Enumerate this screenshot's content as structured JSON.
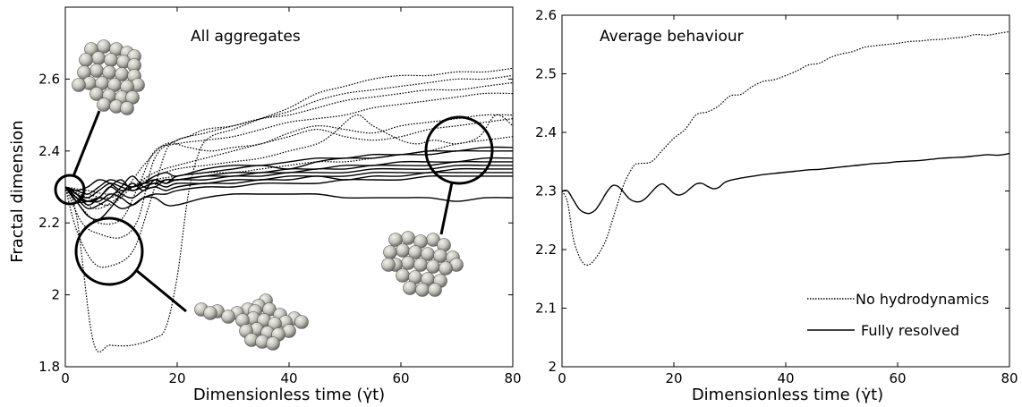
{
  "figure": {
    "background": "#ffffff",
    "ink": "#000000",
    "sphere_color": "#c8c8c0"
  },
  "chart_data": [
    {
      "type": "line",
      "title": "All aggregates",
      "xlabel": "Dimensionless time (γ̇t)",
      "ylabel": "Fractal dimension",
      "xlim": [
        0,
        80
      ],
      "ylim": [
        1.8,
        2.8
      ],
      "xticks": [
        0,
        20,
        40,
        60,
        80
      ],
      "yticks": [
        1.8,
        2,
        2.2,
        2.4,
        2.6
      ],
      "ytick_labels": [
        "1.8",
        "2",
        "2.2",
        "2.4",
        "2.6"
      ],
      "grid": false,
      "annotations": [
        "aggregate at t = 0",
        "aggregate restructured during early deformation",
        "aggregate at late time"
      ],
      "series": [
        {
          "style": "dotted",
          "x": [
            0,
            2,
            5,
            8,
            12,
            16,
            18,
            20,
            22,
            24,
            26,
            30,
            35,
            40,
            45,
            50,
            55,
            60,
            65,
            70,
            75,
            80
          ],
          "y": [
            2.3,
            2.22,
            1.87,
            1.86,
            1.86,
            1.88,
            1.91,
            2.05,
            2.28,
            2.4,
            2.44,
            2.46,
            2.49,
            2.52,
            2.56,
            2.58,
            2.6,
            2.61,
            2.61,
            2.62,
            2.62,
            2.63
          ]
        },
        {
          "style": "dotted",
          "x": [
            0,
            2,
            5,
            8,
            12,
            15,
            18,
            20,
            22,
            25,
            30,
            35,
            40,
            45,
            50,
            55,
            60,
            65,
            70,
            75,
            80
          ],
          "y": [
            2.3,
            2.18,
            2.09,
            2.08,
            2.12,
            2.25,
            2.4,
            2.43,
            2.44,
            2.46,
            2.47,
            2.49,
            2.51,
            2.54,
            2.56,
            2.57,
            2.58,
            2.59,
            2.6,
            2.6,
            2.61
          ]
        },
        {
          "style": "dotted",
          "x": [
            0,
            3,
            6,
            10,
            13,
            16,
            20,
            25,
            30,
            35,
            40,
            45,
            50,
            55,
            60,
            65,
            70,
            75,
            80
          ],
          "y": [
            2.3,
            2.2,
            2.17,
            2.16,
            2.21,
            2.38,
            2.43,
            2.45,
            2.47,
            2.49,
            2.5,
            2.52,
            2.54,
            2.55,
            2.56,
            2.57,
            2.57,
            2.58,
            2.59
          ]
        },
        {
          "style": "dotted",
          "x": [
            0,
            3,
            6,
            10,
            13,
            16,
            20,
            25,
            30,
            35,
            40,
            45,
            50,
            55,
            60,
            65,
            70,
            75,
            80
          ],
          "y": [
            2.3,
            2.24,
            2.2,
            2.21,
            2.3,
            2.4,
            2.42,
            2.43,
            2.44,
            2.46,
            2.48,
            2.49,
            2.5,
            2.52,
            2.53,
            2.54,
            2.55,
            2.56,
            2.56
          ]
        },
        {
          "style": "dotted",
          "x": [
            0,
            3,
            6,
            10,
            14,
            18,
            22,
            26,
            30,
            35,
            40,
            45,
            50,
            55,
            60,
            65,
            70,
            75,
            80
          ],
          "y": [
            2.3,
            2.26,
            2.24,
            2.28,
            2.36,
            2.42,
            2.41,
            2.4,
            2.41,
            2.42,
            2.45,
            2.47,
            2.46,
            2.45,
            2.47,
            2.48,
            2.49,
            2.5,
            2.5
          ]
        },
        {
          "style": "dotted",
          "x": [
            0,
            4,
            8,
            12,
            16,
            20,
            25,
            30,
            35,
            40,
            45,
            50,
            55,
            60,
            65,
            70,
            75,
            80
          ],
          "y": [
            2.3,
            2.27,
            2.25,
            2.3,
            2.34,
            2.36,
            2.38,
            2.4,
            2.42,
            2.44,
            2.46,
            2.44,
            2.43,
            2.44,
            2.46,
            2.47,
            2.48,
            2.49
          ]
        },
        {
          "style": "dotted",
          "x": [
            0,
            4,
            8,
            12,
            16,
            20,
            25,
            30,
            35,
            40,
            45,
            48,
            52,
            55,
            60,
            63,
            66,
            70,
            74,
            77,
            80
          ],
          "y": [
            2.3,
            2.28,
            2.27,
            2.3,
            2.33,
            2.35,
            2.36,
            2.37,
            2.38,
            2.4,
            2.42,
            2.45,
            2.5,
            2.47,
            2.43,
            2.42,
            2.43,
            2.42,
            2.44,
            2.5,
            2.47
          ]
        },
        {
          "style": "dotted",
          "x": [
            0,
            4,
            8,
            12,
            16,
            20,
            25,
            30,
            35,
            40,
            45,
            50,
            55,
            60,
            65,
            70,
            75,
            80
          ],
          "y": [
            2.3,
            2.29,
            2.28,
            2.3,
            2.32,
            2.33,
            2.34,
            2.34,
            2.35,
            2.36,
            2.37,
            2.37,
            2.38,
            2.39,
            2.4,
            2.42,
            2.43,
            2.44
          ]
        },
        {
          "style": "solid",
          "x": [
            0,
            2,
            4,
            6,
            8,
            10,
            12,
            14,
            16,
            18,
            20,
            25,
            30,
            35,
            40,
            45,
            50,
            55,
            60,
            65,
            70,
            75,
            80
          ],
          "y": [
            2.3,
            2.28,
            2.25,
            2.27,
            2.3,
            2.32,
            2.29,
            2.31,
            2.33,
            2.34,
            2.33,
            2.35,
            2.36,
            2.36,
            2.37,
            2.38,
            2.38,
            2.39,
            2.39,
            2.4,
            2.4,
            2.41,
            2.41
          ]
        },
        {
          "style": "solid",
          "x": [
            0,
            2,
            4,
            6,
            8,
            10,
            12,
            14,
            16,
            18,
            20,
            25,
            30,
            35,
            40,
            45,
            50,
            55,
            60,
            65,
            70,
            75,
            80
          ],
          "y": [
            2.3,
            2.26,
            2.22,
            2.21,
            2.24,
            2.28,
            2.31,
            2.29,
            2.32,
            2.31,
            2.33,
            2.34,
            2.35,
            2.36,
            2.35,
            2.37,
            2.38,
            2.38,
            2.39,
            2.39,
            2.4,
            2.4,
            2.4
          ]
        },
        {
          "style": "solid",
          "x": [
            0,
            2,
            4,
            6,
            8,
            10,
            12,
            14,
            16,
            18,
            20,
            25,
            30,
            35,
            40,
            45,
            50,
            55,
            60,
            65,
            70,
            75,
            80
          ],
          "y": [
            2.3,
            2.27,
            2.24,
            2.25,
            2.27,
            2.3,
            2.33,
            2.3,
            2.3,
            2.32,
            2.32,
            2.33,
            2.34,
            2.34,
            2.35,
            2.35,
            2.36,
            2.36,
            2.37,
            2.37,
            2.37,
            2.38,
            2.38
          ]
        },
        {
          "style": "solid",
          "x": [
            0,
            2,
            4,
            6,
            8,
            10,
            12,
            14,
            16,
            18,
            20,
            25,
            30,
            35,
            40,
            45,
            50,
            55,
            60,
            65,
            70,
            75,
            80
          ],
          "y": [
            2.3,
            2.29,
            2.3,
            2.32,
            2.31,
            2.29,
            2.3,
            2.31,
            2.31,
            2.32,
            2.32,
            2.33,
            2.33,
            2.34,
            2.34,
            2.35,
            2.35,
            2.36,
            2.36,
            2.36,
            2.37,
            2.37,
            2.37
          ]
        },
        {
          "style": "solid",
          "x": [
            0,
            2,
            4,
            6,
            8,
            10,
            12,
            14,
            16,
            18,
            20,
            25,
            30,
            35,
            40,
            45,
            50,
            55,
            60,
            65,
            70,
            75,
            80
          ],
          "y": [
            2.3,
            2.29,
            2.28,
            2.3,
            2.32,
            2.31,
            2.3,
            2.31,
            2.32,
            2.31,
            2.32,
            2.32,
            2.33,
            2.33,
            2.34,
            2.34,
            2.34,
            2.35,
            2.35,
            2.35,
            2.36,
            2.36,
            2.36
          ]
        },
        {
          "style": "solid",
          "x": [
            0,
            2,
            4,
            6,
            8,
            10,
            12,
            14,
            16,
            18,
            20,
            25,
            30,
            35,
            40,
            45,
            50,
            55,
            60,
            65,
            70,
            75,
            80
          ],
          "y": [
            2.3,
            2.28,
            2.27,
            2.29,
            2.31,
            2.3,
            2.29,
            2.3,
            2.31,
            2.3,
            2.31,
            2.31,
            2.32,
            2.32,
            2.33,
            2.33,
            2.33,
            2.34,
            2.34,
            2.34,
            2.35,
            2.35,
            2.35
          ]
        },
        {
          "style": "solid",
          "x": [
            0,
            2,
            4,
            6,
            8,
            10,
            12,
            14,
            16,
            18,
            20,
            25,
            30,
            35,
            40,
            45,
            50,
            55,
            60,
            65,
            70,
            75,
            80
          ],
          "y": [
            2.3,
            2.28,
            2.26,
            2.27,
            2.3,
            2.28,
            2.27,
            2.29,
            2.3,
            2.29,
            2.3,
            2.31,
            2.31,
            2.32,
            2.32,
            2.33,
            2.32,
            2.33,
            2.33,
            2.34,
            2.34,
            2.34,
            2.34
          ]
        },
        {
          "style": "solid",
          "x": [
            0,
            2,
            4,
            6,
            8,
            10,
            12,
            14,
            16,
            18,
            20,
            25,
            30,
            35,
            40,
            45,
            50,
            55,
            60,
            65,
            70,
            75,
            80
          ],
          "y": [
            2.3,
            2.27,
            2.26,
            2.26,
            2.28,
            2.27,
            2.25,
            2.27,
            2.28,
            2.28,
            2.29,
            2.3,
            2.3,
            2.31,
            2.31,
            2.31,
            2.32,
            2.32,
            2.32,
            2.33,
            2.33,
            2.33,
            2.33
          ]
        },
        {
          "style": "solid",
          "x": [
            0,
            2,
            4,
            6,
            8,
            10,
            12,
            14,
            16,
            18,
            20,
            25,
            30,
            35,
            40,
            45,
            50,
            55,
            60,
            65,
            70,
            75,
            80
          ],
          "y": [
            2.3,
            2.26,
            2.26,
            2.27,
            2.26,
            2.24,
            2.25,
            2.27,
            2.27,
            2.25,
            2.25,
            2.27,
            2.28,
            2.28,
            2.28,
            2.28,
            2.27,
            2.27,
            2.27,
            2.27,
            2.26,
            2.27,
            2.27
          ]
        }
      ]
    },
    {
      "type": "line",
      "title": "Average behaviour",
      "xlabel": "Dimensionless time (γ̇t)",
      "ylabel": "",
      "xlim": [
        0,
        80
      ],
      "ylim": [
        2.0,
        2.6
      ],
      "xticks": [
        0,
        20,
        40,
        60,
        80
      ],
      "yticks": [
        2.0,
        2.1,
        2.2,
        2.3,
        2.4,
        2.5,
        2.6
      ],
      "ytick_labels": [
        "2",
        "2.1",
        "2.2",
        "2.3",
        "2.4",
        "2.5",
        "2.6"
      ],
      "grid": false,
      "legend_position": "lower-right",
      "series": [
        {
          "name": "No hydrodynamics",
          "style": "dotted",
          "x": [
            0,
            1,
            2,
            3,
            4,
            5,
            6,
            7,
            8,
            9,
            10,
            11,
            12,
            13,
            14,
            16,
            18,
            20,
            22,
            24,
            26,
            28,
            30,
            32,
            34,
            36,
            38,
            40,
            42,
            44,
            46,
            48,
            50,
            52,
            54,
            56,
            58,
            60,
            62,
            64,
            66,
            68,
            70,
            72,
            74,
            76,
            78,
            80
          ],
          "y": [
            2.3,
            2.28,
            2.22,
            2.19,
            2.175,
            2.175,
            2.185,
            2.2,
            2.22,
            2.25,
            2.28,
            2.31,
            2.33,
            2.345,
            2.347,
            2.35,
            2.37,
            2.39,
            2.405,
            2.43,
            2.435,
            2.445,
            2.462,
            2.465,
            2.478,
            2.487,
            2.49,
            2.497,
            2.505,
            2.515,
            2.518,
            2.528,
            2.534,
            2.538,
            2.545,
            2.548,
            2.55,
            2.552,
            2.555,
            2.556,
            2.558,
            2.559,
            2.561,
            2.563,
            2.567,
            2.566,
            2.569,
            2.572
          ]
        },
        {
          "name": "Fully resolved",
          "style": "solid",
          "x": [
            0,
            1,
            2,
            3,
            4,
            5,
            6,
            7,
            8,
            9,
            10,
            11,
            12,
            13,
            14,
            15,
            16,
            17,
            18,
            19,
            20,
            21,
            22,
            23,
            24,
            25,
            26,
            27,
            28,
            29,
            30,
            32,
            34,
            36,
            38,
            40,
            42,
            44,
            46,
            48,
            50,
            52,
            54,
            56,
            58,
            60,
            62,
            64,
            66,
            68,
            70,
            72,
            74,
            76,
            78,
            80
          ],
          "y": [
            2.3,
            2.3,
            2.285,
            2.27,
            2.263,
            2.262,
            2.268,
            2.282,
            2.298,
            2.309,
            2.308,
            2.298,
            2.287,
            2.282,
            2.282,
            2.288,
            2.298,
            2.308,
            2.312,
            2.305,
            2.296,
            2.293,
            2.297,
            2.305,
            2.312,
            2.313,
            2.308,
            2.304,
            2.306,
            2.314,
            2.318,
            2.322,
            2.325,
            2.328,
            2.33,
            2.332,
            2.334,
            2.336,
            2.337,
            2.339,
            2.341,
            2.343,
            2.345,
            2.347,
            2.348,
            2.35,
            2.351,
            2.352,
            2.354,
            2.356,
            2.357,
            2.358,
            2.36,
            2.362,
            2.361,
            2.364
          ]
        }
      ]
    }
  ]
}
